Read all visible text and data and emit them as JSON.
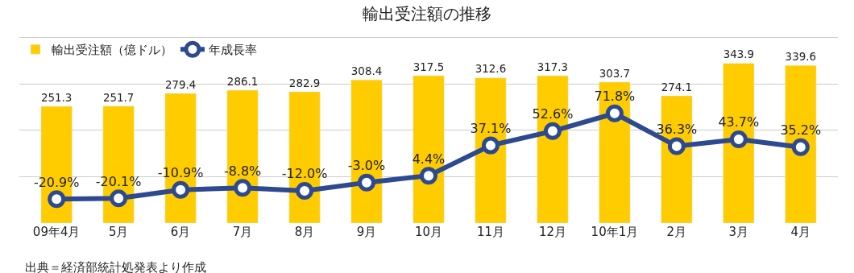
{
  "chart_data": {
    "type": "bar",
    "title": "輸出受注額の推移",
    "categories": [
      "09年4月",
      "5月",
      "6月",
      "7月",
      "8月",
      "9月",
      "10月",
      "11月",
      "12月",
      "10年1月",
      "2月",
      "3月",
      "4月"
    ],
    "series": [
      {
        "name": "輸出受注額（億ドル）",
        "color": "#ffcc00",
        "values": [
          251.3,
          251.7,
          279.4,
          286.1,
          282.9,
          308.4,
          317.5,
          312.6,
          317.3,
          303.7,
          274.1,
          343.9,
          339.6
        ]
      },
      {
        "name": "年成長率",
        "type": "line",
        "axis": "y2",
        "color": "#2d4a90",
        "marker": "circle",
        "line_style": "solid",
        "value_labels": [
          "-20.9%",
          "-20.1%",
          "-10.9%",
          "-8.8%",
          "-12.0%",
          "-3.0%",
          "4.4%",
          "37.1%",
          "52.6%",
          "71.8%",
          "36.3%",
          "43.7%",
          "35.2%"
        ],
        "values": [
          -20.9,
          -20.1,
          -10.9,
          -8.8,
          -12.0,
          -3.0,
          4.4,
          37.1,
          52.6,
          71.8,
          36.3,
          43.7,
          35.2
        ]
      }
    ],
    "data_labels": true,
    "grid": "y",
    "legend": "top left",
    "tick_labels": "x",
    "annotations": [
      "出典＝経済部統計処発表より作成"
    ]
  }
}
